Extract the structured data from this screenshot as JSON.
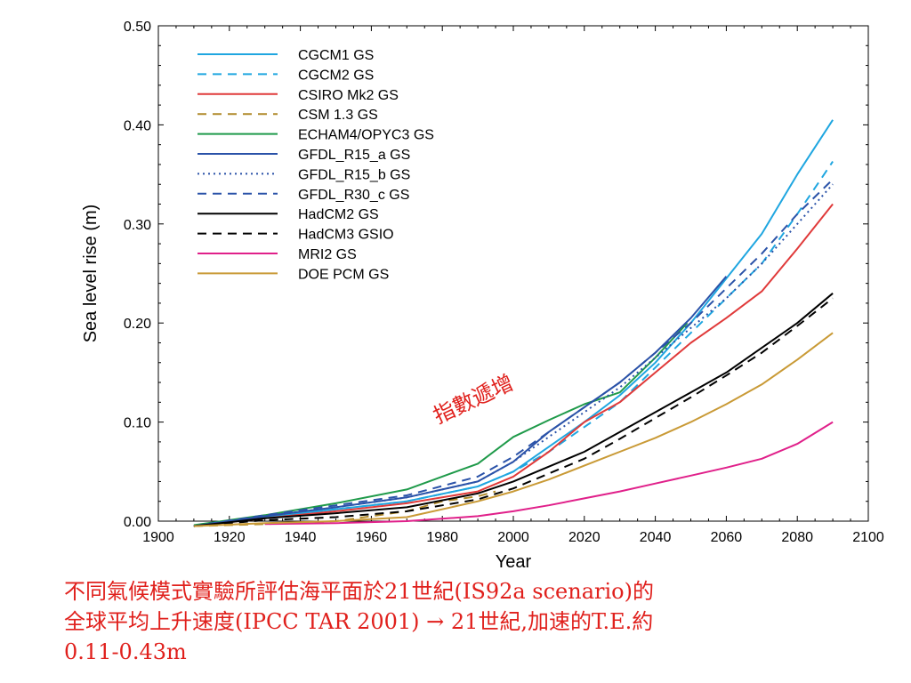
{
  "chart_data": {
    "type": "line",
    "xlabel": "Year",
    "ylabel": "Sea level rise (m)",
    "xlim": [
      1900,
      2100
    ],
    "ylim": [
      0.0,
      0.5
    ],
    "x_ticks": [
      "1900",
      "1920",
      "1940",
      "1960",
      "1980",
      "2000",
      "2020",
      "2040",
      "2060",
      "2080",
      "2100"
    ],
    "y_ticks": [
      "0.00",
      "0.10",
      "0.20",
      "0.30",
      "0.40",
      "0.50"
    ],
    "legend_position": "top-left",
    "series": [
      {
        "name": "CGCM1 GS",
        "color": "#1fa6e0",
        "dash": "solid",
        "x": [
          1910,
          1930,
          1950,
          1970,
          1990,
          2000,
          2010,
          2020,
          2030,
          2040,
          2050,
          2060,
          2070,
          2080,
          2090
        ],
        "y": [
          -0.005,
          0.004,
          0.012,
          0.02,
          0.035,
          0.05,
          0.075,
          0.1,
          0.127,
          0.16,
          0.2,
          0.245,
          0.29,
          0.35,
          0.405
        ]
      },
      {
        "name": "CGCM2 GS",
        "color": "#1fa6e0",
        "dash": "dashed",
        "x": [
          1910,
          1930,
          1950,
          1970,
          1990,
          2000,
          2010,
          2020,
          2030,
          2040,
          2050,
          2060,
          2070,
          2080,
          2090
        ],
        "y": [
          -0.005,
          0.004,
          0.012,
          0.02,
          0.035,
          0.05,
          0.07,
          0.095,
          0.12,
          0.155,
          0.19,
          0.225,
          0.26,
          0.31,
          0.363
        ]
      },
      {
        "name": "CSIRO Mk2 GS",
        "color": "#e03a3a",
        "dash": "solid",
        "x": [
          1910,
          1930,
          1950,
          1970,
          1990,
          2000,
          2010,
          2020,
          2030,
          2040,
          2050,
          2060,
          2070,
          2080,
          2090
        ],
        "y": [
          -0.005,
          0.003,
          0.01,
          0.018,
          0.03,
          0.045,
          0.07,
          0.1,
          0.12,
          0.15,
          0.18,
          0.205,
          0.232,
          0.275,
          0.32
        ]
      },
      {
        "name": "CSM 1.3 GS",
        "color": "#b08a2a",
        "dash": "dashed",
        "x": [
          1910,
          1930,
          1950,
          1960,
          1970,
          1980,
          1990,
          1995
        ],
        "y": [
          -0.005,
          -0.003,
          0.0,
          0.005,
          0.01,
          0.02,
          0.025,
          0.03
        ]
      },
      {
        "name": "ECHAM4/OPYC3 GS",
        "color": "#1f9a4a",
        "dash": "solid",
        "x": [
          1910,
          1930,
          1950,
          1970,
          1990,
          2000,
          2010,
          2020,
          2030,
          2040,
          2049
        ],
        "y": [
          -0.004,
          0.006,
          0.018,
          0.032,
          0.058,
          0.085,
          0.102,
          0.118,
          0.13,
          0.165,
          0.2
        ]
      },
      {
        "name": "GFDL_R15_a GS",
        "color": "#2a52a8",
        "dash": "solid",
        "x": [
          1910,
          1930,
          1950,
          1970,
          1990,
          2000,
          2010,
          2020,
          2030,
          2040,
          2050,
          2060
        ],
        "y": [
          -0.005,
          0.005,
          0.014,
          0.024,
          0.04,
          0.06,
          0.09,
          0.115,
          0.14,
          0.17,
          0.205,
          0.247
        ]
      },
      {
        "name": "GFDL_R15_b GS",
        "color": "#2a52a8",
        "dash": "dotted",
        "x": [
          1910,
          1930,
          1950,
          1970,
          1990,
          2000,
          2010,
          2020,
          2030,
          2040,
          2050,
          2060,
          2070,
          2080,
          2090
        ],
        "y": [
          -0.005,
          0.005,
          0.014,
          0.024,
          0.04,
          0.06,
          0.085,
          0.11,
          0.135,
          0.165,
          0.195,
          0.225,
          0.26,
          0.3,
          0.34
        ]
      },
      {
        "name": "GFDL_R30_c GS",
        "color": "#2a52a8",
        "dash": "dashed",
        "x": [
          1910,
          1930,
          1950,
          1970,
          1990,
          2000,
          2010,
          2020,
          2030,
          2040,
          2050,
          2060,
          2070,
          2080,
          2090
        ],
        "y": [
          -0.005,
          0.006,
          0.016,
          0.026,
          0.045,
          0.065,
          0.09,
          0.115,
          0.14,
          0.17,
          0.2,
          0.235,
          0.27,
          0.31,
          0.345
        ]
      },
      {
        "name": "HadCM2 GS",
        "color": "#000000",
        "dash": "solid",
        "x": [
          1910,
          1930,
          1950,
          1970,
          1990,
          2000,
          2010,
          2020,
          2030,
          2040,
          2050,
          2060,
          2070,
          2080,
          2090
        ],
        "y": [
          -0.005,
          0.003,
          0.008,
          0.014,
          0.028,
          0.04,
          0.055,
          0.07,
          0.09,
          0.11,
          0.13,
          0.15,
          0.175,
          0.2,
          0.23
        ]
      },
      {
        "name": "HadCM3 GSIO",
        "color": "#000000",
        "dash": "dashed",
        "x": [
          1910,
          1930,
          1950,
          1970,
          1990,
          2000,
          2010,
          2020,
          2030,
          2040,
          2050,
          2060,
          2070,
          2080,
          2090
        ],
        "y": [
          -0.005,
          0.001,
          0.004,
          0.01,
          0.022,
          0.033,
          0.048,
          0.063,
          0.083,
          0.104,
          0.125,
          0.147,
          0.17,
          0.197,
          0.225
        ]
      },
      {
        "name": "MRI2 GS",
        "color": "#e0208a",
        "dash": "solid",
        "x": [
          1930,
          1950,
          1970,
          1990,
          2000,
          2010,
          2020,
          2030,
          2040,
          2050,
          2060,
          2070,
          2080,
          2090
        ],
        "y": [
          -0.003,
          -0.002,
          0.0,
          0.005,
          0.01,
          0.016,
          0.023,
          0.03,
          0.038,
          0.046,
          0.054,
          0.063,
          0.078,
          0.1
        ]
      },
      {
        "name": "DOE PCM GS",
        "color": "#c99a36",
        "dash": "solid",
        "x": [
          1910,
          1930,
          1950,
          1970,
          1990,
          2000,
          2010,
          2020,
          2030,
          2040,
          2050,
          2060,
          2070,
          2080,
          2090
        ],
        "y": [
          -0.005,
          -0.002,
          0.0,
          0.004,
          0.02,
          0.03,
          0.042,
          0.056,
          0.07,
          0.084,
          0.1,
          0.118,
          0.138,
          0.163,
          0.19
        ]
      }
    ]
  },
  "annotation": "指數遞增",
  "caption": "不同氣候模式實驗所評估海平面於21世紀(IS92a scenario)的\n全球平均上升速度(IPCC TAR 2001) → 21世紀,加速的T.E.約\n0.11-0.43m"
}
